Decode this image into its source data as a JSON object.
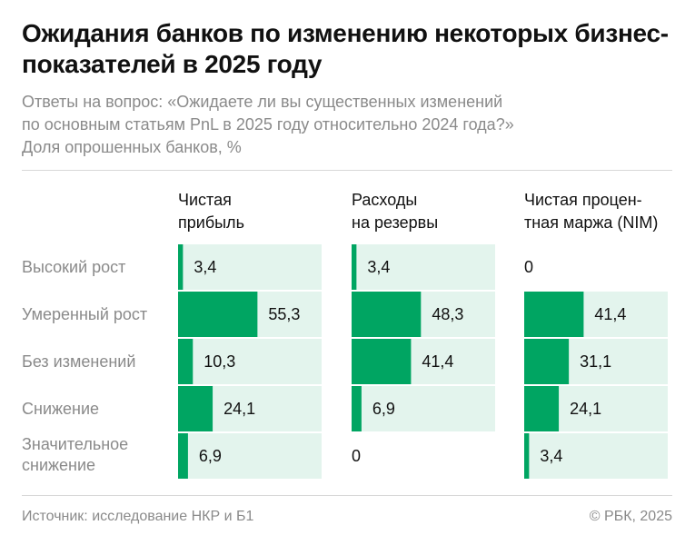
{
  "title": "Ожидания банков по изменению некоторых бизнес-показателей в 2025 году",
  "subtitle_lines": [
    "Ответы на вопрос: «Ожидаете ли вы существенных изменений",
    "по основным статьям PnL в 2025 году относительно 2024 года?»",
    "Доля опрошенных банков, %"
  ],
  "footer": {
    "source": "Источник: исследование НКР и Б1",
    "copyright": "© РБК, 2025"
  },
  "colors": {
    "bar": "#00a562",
    "track": "#e3f4ed",
    "muted": "#8a8a8a"
  },
  "chart_data": [
    {
      "type": "bar",
      "orientation": "horizontal",
      "title": "Чистая\nприбыль",
      "categories": [
        "Высокий рост",
        "Умеренный рост",
        "Без изменений",
        "Снижение",
        "Значительное\nснижение"
      ],
      "values": [
        3.4,
        55.3,
        10.3,
        24.1,
        6.9
      ],
      "labels": [
        "3,4",
        "55,3",
        "10,3",
        "24,1",
        "6,9"
      ],
      "xlim": [
        0,
        100
      ]
    },
    {
      "type": "bar",
      "orientation": "horizontal",
      "title": "Расходы\nна резервы",
      "categories": [
        "Высокий рост",
        "Умеренный рост",
        "Без изменений",
        "Снижение",
        "Значительное\nснижение"
      ],
      "values": [
        3.4,
        48.3,
        41.4,
        6.9,
        0
      ],
      "labels": [
        "3,4",
        "48,3",
        "41,4",
        "6,9",
        "0"
      ],
      "xlim": [
        0,
        100
      ]
    },
    {
      "type": "bar",
      "orientation": "horizontal",
      "title": "Чистая процен-\nтная маржа (NIM)",
      "categories": [
        "Высокий рост",
        "Умеренный рост",
        "Без изменений",
        "Снижение",
        "Значительное\nснижение"
      ],
      "values": [
        0,
        41.4,
        31.1,
        24.1,
        3.4
      ],
      "labels": [
        "0",
        "41,4",
        "31,1",
        "24,1",
        "3,4"
      ],
      "xlim": [
        0,
        100
      ]
    }
  ]
}
